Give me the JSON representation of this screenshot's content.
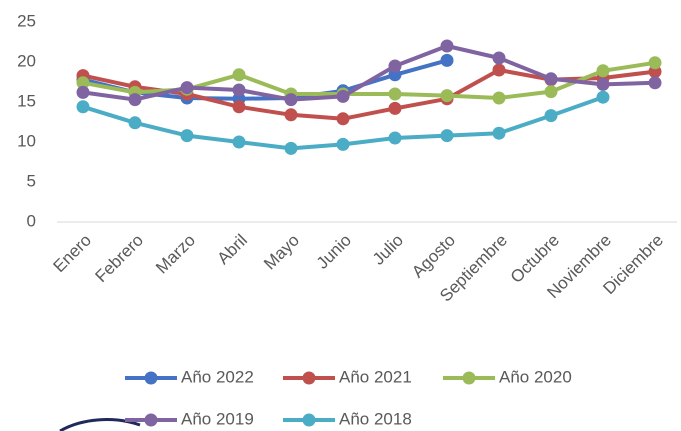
{
  "chart_data": {
    "type": "line",
    "categories": [
      "Enero",
      "Febrero",
      "Marzo",
      "Abril",
      "Mayo",
      "Junio",
      "Julio",
      "Agosto",
      "Septiembre",
      "Octubre",
      "Noviembre",
      "Diciembre"
    ],
    "series": [
      {
        "name": "Año 2022",
        "color": "#4472c4",
        "values": [
          17.8,
          16.2,
          15.5,
          15.4,
          15.5,
          16.4,
          18.4,
          20.2,
          null,
          null,
          null,
          null
        ]
      },
      {
        "name": "Año 2021",
        "color": "#c0504d",
        "values": [
          18.3,
          16.9,
          16.0,
          14.4,
          13.4,
          12.9,
          14.2,
          15.4,
          19.0,
          17.8,
          18.0,
          18.8
        ]
      },
      {
        "name": "Año 2020",
        "color": "#9bbb59",
        "values": [
          17.4,
          16.2,
          16.6,
          18.4,
          16.0,
          16.0,
          16.0,
          15.8,
          15.5,
          16.3,
          18.9,
          19.9
        ]
      },
      {
        "name": "Año 2019",
        "color": "#8064a2",
        "values": [
          16.2,
          15.3,
          16.8,
          16.5,
          15.3,
          15.7,
          19.5,
          22.0,
          20.5,
          17.9,
          17.2,
          17.4
        ]
      },
      {
        "name": "Año 2018",
        "color": "#4bacc6",
        "values": [
          14.4,
          12.4,
          10.8,
          10.0,
          9.2,
          9.7,
          10.5,
          10.8,
          11.1,
          13.3,
          15.6,
          null
        ]
      }
    ],
    "ylim": [
      0,
      25
    ],
    "yticks": [
      0,
      5,
      10,
      15,
      20,
      25
    ]
  }
}
